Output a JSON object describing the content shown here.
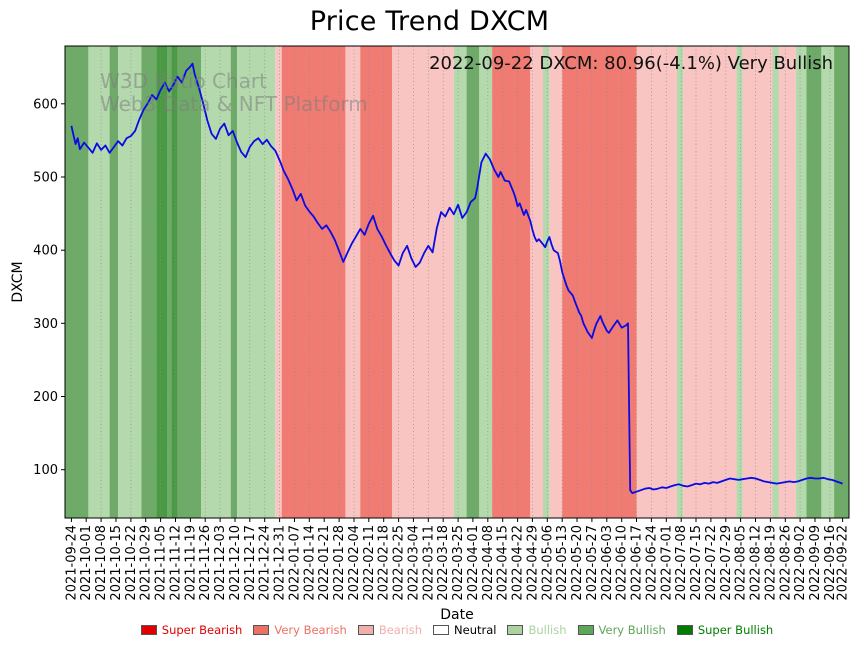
{
  "title": "Price Trend DXCM",
  "annotation": "2022-09-22 DXCM: 80.96(-4.1%) Very Bullish",
  "watermark": {
    "line1": "W3D Ratio Chart",
    "line2": "Web3 Data & NFT Platform"
  },
  "axes": {
    "x_label": "Date",
    "y_label": "DXCM"
  },
  "legend": [
    {
      "key": "super_bearish",
      "label": "Super Bearish",
      "color": "#e00000"
    },
    {
      "key": "very_bearish",
      "label": "Very Bearish",
      "color": "#ec7165"
    },
    {
      "key": "bearish",
      "label": "Bearish",
      "color": "#f1afac"
    },
    {
      "key": "neutral",
      "label": "Neutral",
      "color": "#ffffff",
      "text_color": "#000000"
    },
    {
      "key": "bullish",
      "label": "Bullish",
      "color": "#aad3a0"
    },
    {
      "key": "very_bullish",
      "label": "Very Bullish",
      "color": "#5fa55a"
    },
    {
      "key": "super_bullish",
      "label": "Super Bullish",
      "color": "#007d00"
    }
  ],
  "chart_data": {
    "type": "line",
    "title": "Price Trend DXCM",
    "xlabel": "Date",
    "ylabel": "DXCM",
    "ylim": [
      34,
      679
    ],
    "yticks": [
      100,
      200,
      300,
      400,
      500,
      600
    ],
    "line_color": "#0a0ae6",
    "x_tick_labels": [
      "2021-09-24",
      "2021-10-01",
      "2021-10-08",
      "2021-10-15",
      "2021-10-22",
      "2021-10-29",
      "2021-11-05",
      "2021-11-12",
      "2021-11-19",
      "2021-11-26",
      "2021-12-03",
      "2021-12-10",
      "2021-12-17",
      "2021-12-24",
      "2021-12-31",
      "2022-01-07",
      "2022-01-14",
      "2022-01-21",
      "2022-01-28",
      "2022-02-04",
      "2022-02-11",
      "2022-02-18",
      "2022-02-25",
      "2022-03-04",
      "2022-03-11",
      "2022-03-18",
      "2022-03-25",
      "2022-04-01",
      "2022-04-08",
      "2022-04-15",
      "2022-04-22",
      "2022-04-29",
      "2022-05-06",
      "2022-05-13",
      "2022-05-20",
      "2022-05-27",
      "2022-06-03",
      "2022-06-10",
      "2022-06-17",
      "2022-06-24",
      "2022-07-01",
      "2022-07-08",
      "2022-07-15",
      "2022-07-22",
      "2022-07-29",
      "2022-08-05",
      "2022-08-12",
      "2022-08-19",
      "2022-08-26",
      "2022-09-02",
      "2022-09-09",
      "2022-09-16",
      "2022-09-22"
    ],
    "x_tick_days": [
      0,
      7,
      14,
      21,
      28,
      35,
      42,
      49,
      56,
      63,
      70,
      77,
      84,
      91,
      98,
      105,
      112,
      119,
      126,
      133,
      140,
      147,
      154,
      161,
      168,
      175,
      182,
      189,
      196,
      203,
      210,
      217,
      224,
      231,
      238,
      245,
      252,
      259,
      266,
      273,
      280,
      287,
      294,
      301,
      308,
      315,
      322,
      329,
      336,
      343,
      350,
      357,
      363
    ],
    "band_colors": {
      "super_bearish": "#dd1111",
      "very_bearish": "#ef7b72",
      "bearish": "#f8c5c2",
      "neutral": "#ffffff",
      "bullish": "#b3d9ac",
      "very_bullish": "#6fab68",
      "super_bullish": "#4a9a44"
    },
    "sentiment_bands": [
      {
        "from_day": 0,
        "to_day": 8,
        "sentiment": "very_bullish"
      },
      {
        "from_day": 8,
        "to_day": 18,
        "sentiment": "bullish"
      },
      {
        "from_day": 18,
        "to_day": 22,
        "sentiment": "very_bullish"
      },
      {
        "from_day": 22,
        "to_day": 33,
        "sentiment": "bullish"
      },
      {
        "from_day": 33,
        "to_day": 40,
        "sentiment": "very_bullish"
      },
      {
        "from_day": 40,
        "to_day": 45,
        "sentiment": "super_bullish"
      },
      {
        "from_day": 45,
        "to_day": 47,
        "sentiment": "very_bullish"
      },
      {
        "from_day": 47,
        "to_day": 50,
        "sentiment": "super_bullish"
      },
      {
        "from_day": 50,
        "to_day": 61,
        "sentiment": "very_bullish"
      },
      {
        "from_day": 61,
        "to_day": 75,
        "sentiment": "bullish"
      },
      {
        "from_day": 75,
        "to_day": 78,
        "sentiment": "very_bullish"
      },
      {
        "from_day": 78,
        "to_day": 96,
        "sentiment": "bullish"
      },
      {
        "from_day": 96,
        "to_day": 99,
        "sentiment": "bearish"
      },
      {
        "from_day": 99,
        "to_day": 129,
        "sentiment": "very_bearish"
      },
      {
        "from_day": 129,
        "to_day": 136,
        "sentiment": "bearish"
      },
      {
        "from_day": 136,
        "to_day": 151,
        "sentiment": "very_bearish"
      },
      {
        "from_day": 151,
        "to_day": 180,
        "sentiment": "bearish"
      },
      {
        "from_day": 180,
        "to_day": 186,
        "sentiment": "bullish"
      },
      {
        "from_day": 186,
        "to_day": 192,
        "sentiment": "very_bullish"
      },
      {
        "from_day": 192,
        "to_day": 198,
        "sentiment": "bullish"
      },
      {
        "from_day": 198,
        "to_day": 216,
        "sentiment": "very_bearish"
      },
      {
        "from_day": 216,
        "to_day": 222,
        "sentiment": "bearish"
      },
      {
        "from_day": 222,
        "to_day": 225,
        "sentiment": "bullish"
      },
      {
        "from_day": 225,
        "to_day": 231,
        "sentiment": "bearish"
      },
      {
        "from_day": 231,
        "to_day": 266,
        "sentiment": "very_bearish"
      },
      {
        "from_day": 266,
        "to_day": 285,
        "sentiment": "bearish"
      },
      {
        "from_day": 285,
        "to_day": 288,
        "sentiment": "bullish"
      },
      {
        "from_day": 288,
        "to_day": 313,
        "sentiment": "bearish"
      },
      {
        "from_day": 313,
        "to_day": 316,
        "sentiment": "bullish"
      },
      {
        "from_day": 316,
        "to_day": 330,
        "sentiment": "bearish"
      },
      {
        "from_day": 330,
        "to_day": 333,
        "sentiment": "bullish"
      },
      {
        "from_day": 333,
        "to_day": 341,
        "sentiment": "bearish"
      },
      {
        "from_day": 341,
        "to_day": 346,
        "sentiment": "bullish"
      },
      {
        "from_day": 346,
        "to_day": 353,
        "sentiment": "very_bullish"
      },
      {
        "from_day": 353,
        "to_day": 359,
        "sentiment": "bullish"
      },
      {
        "from_day": 359,
        "to_day": 363,
        "sentiment": "very_bullish"
      }
    ],
    "series": [
      {
        "name": "DXCM",
        "points": [
          [
            0,
            570
          ],
          [
            1,
            557
          ],
          [
            2,
            545
          ],
          [
            3,
            553
          ],
          [
            4,
            538
          ],
          [
            6,
            547
          ],
          [
            8,
            540
          ],
          [
            10,
            533
          ],
          [
            12,
            546
          ],
          [
            14,
            537
          ],
          [
            16,
            543
          ],
          [
            18,
            533
          ],
          [
            20,
            541
          ],
          [
            22,
            549
          ],
          [
            24,
            543
          ],
          [
            26,
            553
          ],
          [
            28,
            556
          ],
          [
            30,
            563
          ],
          [
            32,
            579
          ],
          [
            34,
            592
          ],
          [
            36,
            601
          ],
          [
            38,
            612
          ],
          [
            40,
            606
          ],
          [
            42,
            619
          ],
          [
            44,
            629
          ],
          [
            46,
            617
          ],
          [
            48,
            626
          ],
          [
            50,
            637
          ],
          [
            52,
            629
          ],
          [
            54,
            645
          ],
          [
            56,
            651
          ],
          [
            57,
            655
          ],
          [
            58,
            641
          ],
          [
            60,
            622
          ],
          [
            62,
            601
          ],
          [
            64,
            577
          ],
          [
            66,
            559
          ],
          [
            68,
            552
          ],
          [
            70,
            566
          ],
          [
            72,
            573
          ],
          [
            74,
            557
          ],
          [
            76,
            563
          ],
          [
            78,
            547
          ],
          [
            80,
            534
          ],
          [
            82,
            527
          ],
          [
            84,
            541
          ],
          [
            86,
            549
          ],
          [
            88,
            553
          ],
          [
            90,
            545
          ],
          [
            92,
            551
          ],
          [
            94,
            542
          ],
          [
            96,
            536
          ],
          [
            98,
            523
          ],
          [
            100,
            508
          ],
          [
            102,
            497
          ],
          [
            104,
            484
          ],
          [
            106,
            468
          ],
          [
            108,
            477
          ],
          [
            110,
            461
          ],
          [
            112,
            453
          ],
          [
            114,
            446
          ],
          [
            116,
            437
          ],
          [
            118,
            429
          ],
          [
            120,
            434
          ],
          [
            122,
            425
          ],
          [
            124,
            414
          ],
          [
            126,
            399
          ],
          [
            128,
            384
          ],
          [
            130,
            397
          ],
          [
            132,
            409
          ],
          [
            134,
            419
          ],
          [
            136,
            429
          ],
          [
            138,
            421
          ],
          [
            140,
            436
          ],
          [
            142,
            447
          ],
          [
            144,
            429
          ],
          [
            146,
            419
          ],
          [
            148,
            407
          ],
          [
            150,
            396
          ],
          [
            152,
            386
          ],
          [
            154,
            379
          ],
          [
            156,
            396
          ],
          [
            158,
            406
          ],
          [
            160,
            389
          ],
          [
            162,
            377
          ],
          [
            164,
            383
          ],
          [
            166,
            396
          ],
          [
            168,
            406
          ],
          [
            170,
            397
          ],
          [
            172,
            430
          ],
          [
            174,
            452
          ],
          [
            176,
            446
          ],
          [
            178,
            458
          ],
          [
            180,
            449
          ],
          [
            182,
            462
          ],
          [
            184,
            444
          ],
          [
            186,
            452
          ],
          [
            188,
            466
          ],
          [
            190,
            471
          ],
          [
            191,
            485
          ],
          [
            193,
            520
          ],
          [
            195,
            532
          ],
          [
            197,
            524
          ],
          [
            199,
            510
          ],
          [
            201,
            500
          ],
          [
            202,
            507
          ],
          [
            204,
            495
          ],
          [
            206,
            494
          ],
          [
            208,
            480
          ],
          [
            209,
            472
          ],
          [
            210,
            460
          ],
          [
            211,
            464
          ],
          [
            213,
            448
          ],
          [
            214,
            455
          ],
          [
            216,
            440
          ],
          [
            217,
            428
          ],
          [
            218,
            418
          ],
          [
            219,
            412
          ],
          [
            220,
            415
          ],
          [
            222,
            408
          ],
          [
            223,
            404
          ],
          [
            224,
            412
          ],
          [
            225,
            418
          ],
          [
            226,
            408
          ],
          [
            227,
            400
          ],
          [
            229,
            396
          ],
          [
            230,
            385
          ],
          [
            231,
            370
          ],
          [
            233,
            352
          ],
          [
            234,
            345
          ],
          [
            236,
            338
          ],
          [
            237,
            330
          ],
          [
            239,
            315
          ],
          [
            240,
            310
          ],
          [
            241,
            300
          ],
          [
            243,
            288
          ],
          [
            245,
            280
          ],
          [
            246,
            290
          ],
          [
            247,
            299
          ],
          [
            249,
            310
          ],
          [
            250,
            302
          ],
          [
            252,
            290
          ],
          [
            253,
            287
          ],
          [
            255,
            296
          ],
          [
            257,
            304
          ],
          [
            259,
            294
          ],
          [
            261,
            297
          ],
          [
            262,
            300
          ],
          [
            263,
            72
          ],
          [
            264,
            68
          ],
          [
            266,
            70
          ],
          [
            268,
            72
          ],
          [
            270,
            74
          ],
          [
            272,
            75
          ],
          [
            274,
            73
          ],
          [
            276,
            74
          ],
          [
            278,
            76
          ],
          [
            280,
            75
          ],
          [
            282,
            77
          ],
          [
            284,
            79
          ],
          [
            286,
            80
          ],
          [
            288,
            78
          ],
          [
            290,
            77
          ],
          [
            292,
            79
          ],
          [
            294,
            81
          ],
          [
            296,
            80
          ],
          [
            298,
            82
          ],
          [
            300,
            81
          ],
          [
            302,
            83
          ],
          [
            304,
            82
          ],
          [
            306,
            84
          ],
          [
            308,
            86
          ],
          [
            310,
            88
          ],
          [
            312,
            87
          ],
          [
            314,
            86
          ],
          [
            316,
            87
          ],
          [
            318,
            88
          ],
          [
            320,
            89
          ],
          [
            322,
            88
          ],
          [
            324,
            86
          ],
          [
            326,
            84
          ],
          [
            328,
            83
          ],
          [
            330,
            82
          ],
          [
            332,
            81
          ],
          [
            334,
            82
          ],
          [
            336,
            83
          ],
          [
            338,
            84
          ],
          [
            340,
            83
          ],
          [
            342,
            84
          ],
          [
            344,
            86
          ],
          [
            346,
            88
          ],
          [
            348,
            89
          ],
          [
            350,
            88
          ],
          [
            352,
            88
          ],
          [
            354,
            89
          ],
          [
            356,
            87
          ],
          [
            358,
            86
          ],
          [
            360,
            84
          ],
          [
            362,
            82
          ],
          [
            363,
            81
          ]
        ]
      }
    ]
  }
}
